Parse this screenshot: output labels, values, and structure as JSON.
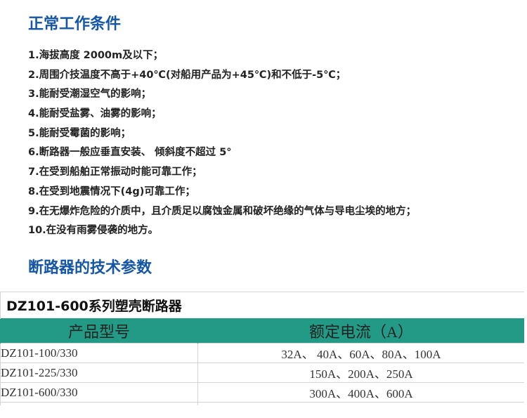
{
  "section1": {
    "title": "正常工作条件",
    "items": [
      "1.海拔高度 2000m及以下；",
      "2.周围介技温度不高于+40℃(对船用产品为+45℃)和不低于-5℃；",
      "3.能耐受潮湿空气的影响；",
      "4.能耐受盐雾、油雾的影响；",
      "5.能耐受霉菌的影响；",
      "6.断路器一般应垂直安装、 倾斜度不超过 5°",
      "7.在受到船舶正常振动时能可靠工作；",
      "8.在受到地震情况下(4g)可靠工作；",
      "9.在无爆炸危险的介质中，且介质足以腐蚀金属和破坏绝缘的气体与导电尘埃的地方；",
      "10.在没有雨雾侵袭的地方。"
    ]
  },
  "section2": {
    "title": "断路器的技术参数"
  },
  "table": {
    "title": "DZ101-600系列塑壳断路器",
    "header_color": "#239a85",
    "columns": [
      "产品型号",
      "额定电流（A）"
    ],
    "rows": [
      [
        "DZ101-100/330",
        "32A、 40A、60A、80A、100A"
      ],
      [
        "DZ101-225/330",
        "150A、200A、250A"
      ],
      [
        "DZ101-600/330",
        "300A、400A、600A"
      ]
    ]
  }
}
